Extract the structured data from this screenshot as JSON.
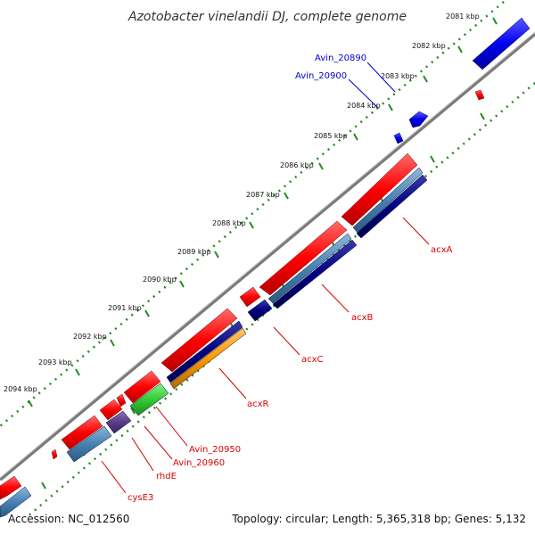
{
  "title": "Azotobacter vinelandii DJ, complete genome",
  "footer": {
    "accession": "Accession: NC_012560",
    "summary": "Topology: circular; Length: 5,365,318 bp; Genes: 5,132"
  },
  "ticks": [
    "2081 kbp",
    "2082 kbp",
    "2083 kbp",
    "2084 kbp",
    "2085 kbp",
    "2086 kbp",
    "2087 kbp",
    "2088 kbp",
    "2089 kbp",
    "2090 kbp",
    "2091 kbp",
    "2092 kbp",
    "2093 kbp",
    "2094 kbp"
  ],
  "gene_labels": {
    "avin_20890": "Avin_20890",
    "avin_20900": "Avin_20900",
    "acxA": "acxA",
    "acxB": "acxB",
    "acxC": "acxC",
    "acxR": "acxR",
    "avin_20950": "Avin_20950",
    "avin_20960": "Avin_20960",
    "rhdE": "rhdE",
    "cysE3": "cysE3"
  },
  "colors": {
    "forward_gene": "#ff0000",
    "forward_gene_dark": "#b30000",
    "reverse_gene_blue": "#0000ee",
    "steelblue_gene": "#4682b4",
    "navy_gene": "#000080",
    "orange_gene": "#ff9900",
    "green_gene": "#33cc33",
    "purple_gene": "#5a3d8a",
    "backbone": "#888888",
    "tick_green": "#228b22",
    "label_red": "#dd0000",
    "label_blue": "#0000cc"
  }
}
